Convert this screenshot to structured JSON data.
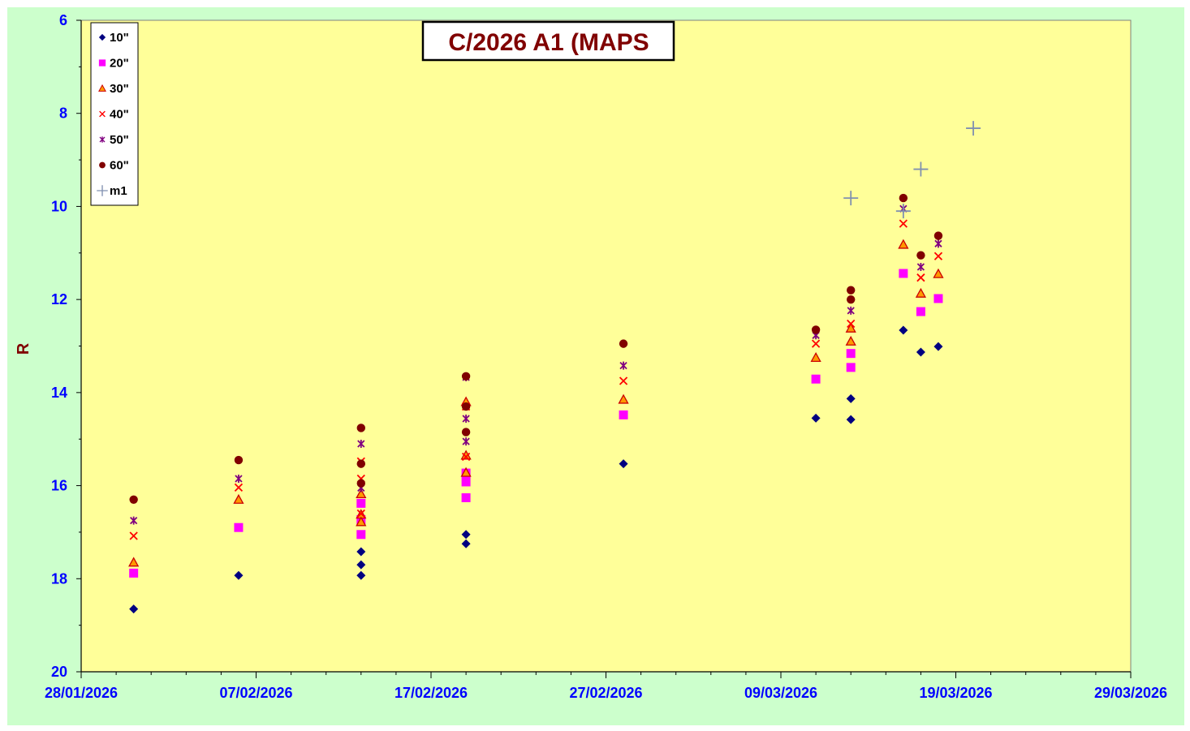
{
  "chart_data": {
    "type": "scatter",
    "title": "C/2026 A1 (MAPS",
    "xlabel": "",
    "ylabel": "R",
    "xlim": [
      "28/01/2026",
      "29/03/2026"
    ],
    "ylim": [
      6,
      20
    ],
    "y_inverted": true,
    "grid": false,
    "legend_position": "top-left",
    "x_tick_labels": [
      "28/01/2026",
      "07/02/2026",
      "17/02/2026",
      "27/02/2026",
      "09/03/2026",
      "19/03/2026",
      "29/03/2026"
    ],
    "y_tick_labels": [
      "6",
      "8",
      "10",
      "12",
      "14",
      "16",
      "18",
      "20"
    ],
    "colors": {
      "outer_background": "#ccffcc",
      "plot_background": "#ffff99",
      "axis_text": "#0000ff",
      "title_text": "#800000"
    },
    "series": [
      {
        "name": "10\"",
        "marker": "diamond",
        "color": "#000080",
        "points": [
          [
            "2026-01-31",
            18.65
          ],
          [
            "2026-02-06",
            17.93
          ],
          [
            "2026-02-13",
            17.42
          ],
          [
            "2026-02-13",
            17.7
          ],
          [
            "2026-02-13",
            17.93
          ],
          [
            "2026-02-19",
            17.05
          ],
          [
            "2026-02-19",
            17.25
          ],
          [
            "2026-02-28",
            15.53
          ],
          [
            "2026-03-11",
            14.55
          ],
          [
            "2026-03-13",
            14.13
          ],
          [
            "2026-03-13",
            14.58
          ],
          [
            "2026-03-16",
            12.66
          ],
          [
            "2026-03-17",
            13.13
          ],
          [
            "2026-03-18",
            13.01
          ]
        ]
      },
      {
        "name": "20\"",
        "marker": "square",
        "color": "#ff00ff",
        "points": [
          [
            "2026-01-31",
            17.88
          ],
          [
            "2026-02-06",
            16.9
          ],
          [
            "2026-02-13",
            16.38
          ],
          [
            "2026-02-13",
            16.73
          ],
          [
            "2026-02-13",
            17.05
          ],
          [
            "2026-02-19",
            15.73
          ],
          [
            "2026-02-19",
            15.92
          ],
          [
            "2026-02-19",
            16.26
          ],
          [
            "2026-02-28",
            14.48
          ],
          [
            "2026-03-11",
            13.71
          ],
          [
            "2026-03-13",
            13.16
          ],
          [
            "2026-03-13",
            13.46
          ],
          [
            "2026-03-16",
            11.44
          ],
          [
            "2026-03-17",
            12.26
          ],
          [
            "2026-03-18",
            11.98
          ]
        ]
      },
      {
        "name": "30\"",
        "marker": "triangle",
        "color": "#ff9900",
        "stroke": "#cc0000",
        "points": [
          [
            "2026-01-31",
            17.65
          ],
          [
            "2026-02-06",
            16.3
          ],
          [
            "2026-02-13",
            16.18
          ],
          [
            "2026-02-13",
            16.62
          ],
          [
            "2026-02-13",
            16.78
          ],
          [
            "2026-02-19",
            14.2
          ],
          [
            "2026-02-19",
            15.35
          ],
          [
            "2026-02-19",
            15.72
          ],
          [
            "2026-02-28",
            14.15
          ],
          [
            "2026-03-11",
            13.25
          ],
          [
            "2026-03-13",
            12.62
          ],
          [
            "2026-03-13",
            12.9
          ],
          [
            "2026-03-16",
            10.82
          ],
          [
            "2026-03-17",
            11.87
          ],
          [
            "2026-03-18",
            11.45
          ]
        ]
      },
      {
        "name": "40\"",
        "marker": "x",
        "color": "#ff0000",
        "points": [
          [
            "2026-01-31",
            17.08
          ],
          [
            "2026-02-06",
            16.04
          ],
          [
            "2026-02-13",
            15.48
          ],
          [
            "2026-02-13",
            15.85
          ],
          [
            "2026-02-13",
            16.6
          ],
          [
            "2026-02-19",
            14.3
          ],
          [
            "2026-02-19",
            15.38
          ],
          [
            "2026-02-28",
            13.75
          ],
          [
            "2026-03-11",
            12.95
          ],
          [
            "2026-03-13",
            12.52
          ],
          [
            "2026-03-16",
            10.37
          ],
          [
            "2026-03-17",
            11.53
          ],
          [
            "2026-03-18",
            11.07
          ]
        ]
      },
      {
        "name": "50\"",
        "marker": "star",
        "color": "#800080",
        "points": [
          [
            "2026-01-31",
            16.75
          ],
          [
            "2026-02-06",
            15.85
          ],
          [
            "2026-02-13",
            15.1
          ],
          [
            "2026-02-13",
            16.05
          ],
          [
            "2026-02-19",
            13.67
          ],
          [
            "2026-02-19",
            14.56
          ],
          [
            "2026-02-19",
            15.05
          ],
          [
            "2026-02-28",
            13.42
          ],
          [
            "2026-03-11",
            12.77
          ],
          [
            "2026-03-13",
            12.24
          ],
          [
            "2026-03-16",
            10.05
          ],
          [
            "2026-03-17",
            11.3
          ],
          [
            "2026-03-18",
            10.8
          ]
        ]
      },
      {
        "name": "60\"",
        "marker": "circle",
        "color": "#800000",
        "points": [
          [
            "2026-01-31",
            16.3
          ],
          [
            "2026-02-06",
            15.45
          ],
          [
            "2026-02-13",
            14.76
          ],
          [
            "2026-02-13",
            15.53
          ],
          [
            "2026-02-13",
            15.95
          ],
          [
            "2026-02-19",
            13.65
          ],
          [
            "2026-02-19",
            14.3
          ],
          [
            "2026-02-19",
            14.85
          ],
          [
            "2026-02-28",
            12.95
          ],
          [
            "2026-03-11",
            12.65
          ],
          [
            "2026-03-13",
            11.8
          ],
          [
            "2026-03-13",
            12.0
          ],
          [
            "2026-03-16",
            9.82
          ],
          [
            "2026-03-17",
            11.05
          ],
          [
            "2026-03-18",
            10.63
          ]
        ]
      },
      {
        "name": "m1",
        "marker": "plus",
        "color": "#8090b0",
        "points": [
          [
            "2026-03-13",
            9.82
          ],
          [
            "2026-03-16",
            10.1
          ],
          [
            "2026-03-17",
            9.2
          ],
          [
            "2026-03-20",
            8.32
          ]
        ]
      }
    ]
  }
}
